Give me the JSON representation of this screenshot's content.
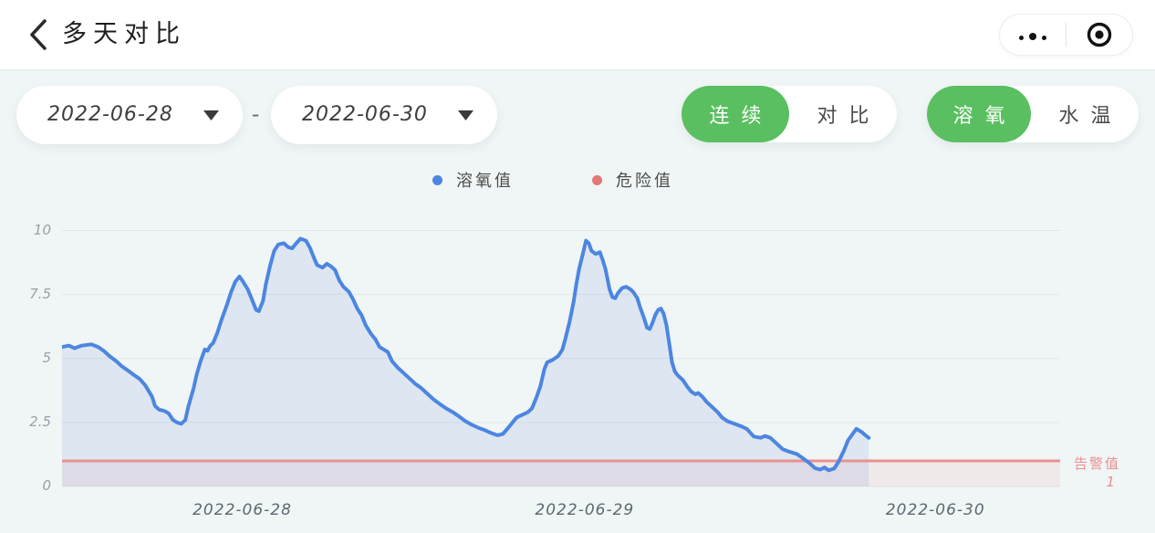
{
  "header": {
    "title": "多天对比",
    "icons": {
      "back": "chevron-left",
      "more": "three-dots",
      "exit": "target-circle",
      "dropdown": "caret-down"
    }
  },
  "filters": {
    "start_date": "2022-06-28",
    "separator": "-",
    "end_date": "2022-06-30",
    "mode_toggle": {
      "options": [
        "连续",
        "对比"
      ],
      "active_index": 0
    },
    "metric_toggle": {
      "options": [
        "溶氧",
        "水温"
      ],
      "active_index": 0
    }
  },
  "legend": {
    "items": [
      {
        "label": "溶氧值",
        "color": "#4c86e0"
      },
      {
        "label": "危险值",
        "color": "#e07878"
      }
    ]
  },
  "colors": {
    "page_bg": "#f0f5f5",
    "header_bg": "#ffffff",
    "accent_green": "#5abf60",
    "grid_line": "#e2e7ea",
    "y_label": "#99a2a8",
    "x_label": "#5d6870"
  },
  "chart_data": {
    "type": "area",
    "title": "",
    "xlabel": "",
    "ylabel": "",
    "x_axis": {
      "labels": [
        "2022-06-28",
        "2022-06-29",
        "2022-06-30"
      ],
      "span_hours": 72,
      "label_positions_hours": [
        13,
        37.7,
        63
      ],
      "grid": false
    },
    "y_axis": {
      "ticks": [
        0,
        2.5,
        5,
        7.5,
        10
      ],
      "range": [
        0,
        10
      ],
      "grid": true
    },
    "legend_position": "top-center",
    "alarm_line": {
      "label": "告警值",
      "value": 1,
      "color": "#e8918e"
    },
    "series": [
      {
        "name": "溶氧值",
        "type": "line",
        "color": "#4c86e0",
        "fill": "rgba(96,134,213,0.13)",
        "points_hours_value": [
          [
            0,
            5.45
          ],
          [
            0.5,
            5.5
          ],
          [
            0.9,
            5.4
          ],
          [
            1.4,
            5.5
          ],
          [
            2.1,
            5.55
          ],
          [
            2.6,
            5.45
          ],
          [
            3,
            5.3
          ],
          [
            3.4,
            5.1
          ],
          [
            3.9,
            4.9
          ],
          [
            4.3,
            4.7
          ],
          [
            4.7,
            4.55
          ],
          [
            5.2,
            4.35
          ],
          [
            5.6,
            4.2
          ],
          [
            6,
            3.95
          ],
          [
            6.5,
            3.5
          ],
          [
            6.7,
            3.15
          ],
          [
            7,
            3
          ],
          [
            7.4,
            2.95
          ],
          [
            7.7,
            2.85
          ],
          [
            8,
            2.6
          ],
          [
            8.3,
            2.5
          ],
          [
            8.6,
            2.45
          ],
          [
            8.9,
            2.6
          ],
          [
            9.1,
            3.1
          ],
          [
            9.5,
            3.85
          ],
          [
            9.7,
            4.35
          ],
          [
            10,
            4.9
          ],
          [
            10.3,
            5.35
          ],
          [
            10.5,
            5.3
          ],
          [
            10.7,
            5.5
          ],
          [
            10.9,
            5.6
          ],
          [
            11.2,
            6
          ],
          [
            11.5,
            6.5
          ],
          [
            11.9,
            7.1
          ],
          [
            12.2,
            7.6
          ],
          [
            12.5,
            8
          ],
          [
            12.8,
            8.2
          ],
          [
            13,
            8.05
          ],
          [
            13.4,
            7.7
          ],
          [
            13.7,
            7.3
          ],
          [
            14,
            6.9
          ],
          [
            14.2,
            6.85
          ],
          [
            14.5,
            7.25
          ],
          [
            14.7,
            7.9
          ],
          [
            15,
            8.6
          ],
          [
            15.3,
            9.2
          ],
          [
            15.6,
            9.45
          ],
          [
            16,
            9.5
          ],
          [
            16.3,
            9.35
          ],
          [
            16.6,
            9.3
          ],
          [
            16.9,
            9.5
          ],
          [
            17.2,
            9.68
          ],
          [
            17.6,
            9.6
          ],
          [
            17.9,
            9.3
          ],
          [
            18.2,
            8.9
          ],
          [
            18.4,
            8.65
          ],
          [
            18.8,
            8.55
          ],
          [
            19.1,
            8.7
          ],
          [
            19.4,
            8.6
          ],
          [
            19.7,
            8.45
          ],
          [
            20,
            8.05
          ],
          [
            20.3,
            7.8
          ],
          [
            20.7,
            7.6
          ],
          [
            21,
            7.3
          ],
          [
            21.3,
            6.95
          ],
          [
            21.6,
            6.7
          ],
          [
            21.9,
            6.3
          ],
          [
            22.3,
            5.95
          ],
          [
            22.6,
            5.75
          ],
          [
            22.9,
            5.45
          ],
          [
            23.2,
            5.35
          ],
          [
            23.5,
            5.25
          ],
          [
            23.8,
            4.9
          ],
          [
            24.2,
            4.65
          ],
          [
            24.6,
            4.45
          ],
          [
            25.1,
            4.2
          ],
          [
            25.5,
            4
          ],
          [
            25.9,
            3.85
          ],
          [
            26.3,
            3.65
          ],
          [
            26.8,
            3.4
          ],
          [
            27.3,
            3.2
          ],
          [
            27.7,
            3.05
          ],
          [
            28.2,
            2.9
          ],
          [
            28.6,
            2.75
          ],
          [
            29.1,
            2.55
          ],
          [
            29.6,
            2.4
          ],
          [
            30,
            2.3
          ],
          [
            30.5,
            2.2
          ],
          [
            30.9,
            2.1
          ],
          [
            31.4,
            2
          ],
          [
            31.8,
            2.05
          ],
          [
            32.2,
            2.3
          ],
          [
            32.5,
            2.5
          ],
          [
            32.8,
            2.7
          ],
          [
            33.2,
            2.8
          ],
          [
            33.6,
            2.9
          ],
          [
            33.9,
            3.05
          ],
          [
            34.2,
            3.45
          ],
          [
            34.5,
            3.9
          ],
          [
            34.8,
            4.6
          ],
          [
            35,
            4.85
          ],
          [
            35.4,
            4.95
          ],
          [
            35.8,
            5.1
          ],
          [
            36.1,
            5.35
          ],
          [
            36.3,
            5.75
          ],
          [
            36.6,
            6.4
          ],
          [
            36.9,
            7.2
          ],
          [
            37.1,
            7.9
          ],
          [
            37.3,
            8.5
          ],
          [
            37.6,
            9.15
          ],
          [
            37.8,
            9.6
          ],
          [
            38,
            9.5
          ],
          [
            38.2,
            9.2
          ],
          [
            38.5,
            9.08
          ],
          [
            38.8,
            9.15
          ],
          [
            39,
            8.85
          ],
          [
            39.2,
            8.5
          ],
          [
            39.5,
            7.7
          ],
          [
            39.7,
            7.4
          ],
          [
            39.9,
            7.35
          ],
          [
            40.1,
            7.55
          ],
          [
            40.4,
            7.75
          ],
          [
            40.7,
            7.8
          ],
          [
            41,
            7.7
          ],
          [
            41.2,
            7.6
          ],
          [
            41.5,
            7.35
          ],
          [
            41.7,
            7
          ],
          [
            42,
            6.55
          ],
          [
            42.2,
            6.2
          ],
          [
            42.4,
            6.15
          ],
          [
            42.6,
            6.4
          ],
          [
            42.8,
            6.7
          ],
          [
            43,
            6.9
          ],
          [
            43.2,
            6.95
          ],
          [
            43.4,
            6.75
          ],
          [
            43.6,
            6.3
          ],
          [
            43.8,
            5.6
          ],
          [
            44,
            4.85
          ],
          [
            44.2,
            4.5
          ],
          [
            44.4,
            4.35
          ],
          [
            44.8,
            4.15
          ],
          [
            45.1,
            3.9
          ],
          [
            45.4,
            3.7
          ],
          [
            45.7,
            3.6
          ],
          [
            45.9,
            3.65
          ],
          [
            46.2,
            3.5
          ],
          [
            46.5,
            3.3
          ],
          [
            46.9,
            3.1
          ],
          [
            47.3,
            2.9
          ],
          [
            47.6,
            2.7
          ],
          [
            48,
            2.55
          ],
          [
            48.5,
            2.45
          ],
          [
            49,
            2.35
          ],
          [
            49.4,
            2.25
          ],
          [
            49.9,
            1.95
          ],
          [
            50.4,
            1.9
          ],
          [
            50.7,
            1.97
          ],
          [
            51.1,
            1.9
          ],
          [
            51.6,
            1.65
          ],
          [
            52,
            1.45
          ],
          [
            52.5,
            1.35
          ],
          [
            53,
            1.27
          ],
          [
            53.4,
            1.12
          ],
          [
            53.9,
            0.92
          ],
          [
            54.3,
            0.72
          ],
          [
            54.7,
            0.66
          ],
          [
            55,
            0.74
          ],
          [
            55.3,
            0.63
          ],
          [
            55.7,
            0.7
          ],
          [
            56,
            0.95
          ],
          [
            56.4,
            1.4
          ],
          [
            56.7,
            1.8
          ],
          [
            57.1,
            2.1
          ],
          [
            57.3,
            2.25
          ],
          [
            57.7,
            2.12
          ],
          [
            58,
            1.98
          ],
          [
            58.2,
            1.9
          ]
        ]
      },
      {
        "name": "危险值",
        "type": "line",
        "color": "#e8918e",
        "fill": "rgba(235,150,150,0.12)",
        "points_hours_value": [
          [
            0,
            1
          ],
          [
            72,
            1
          ]
        ]
      }
    ]
  }
}
